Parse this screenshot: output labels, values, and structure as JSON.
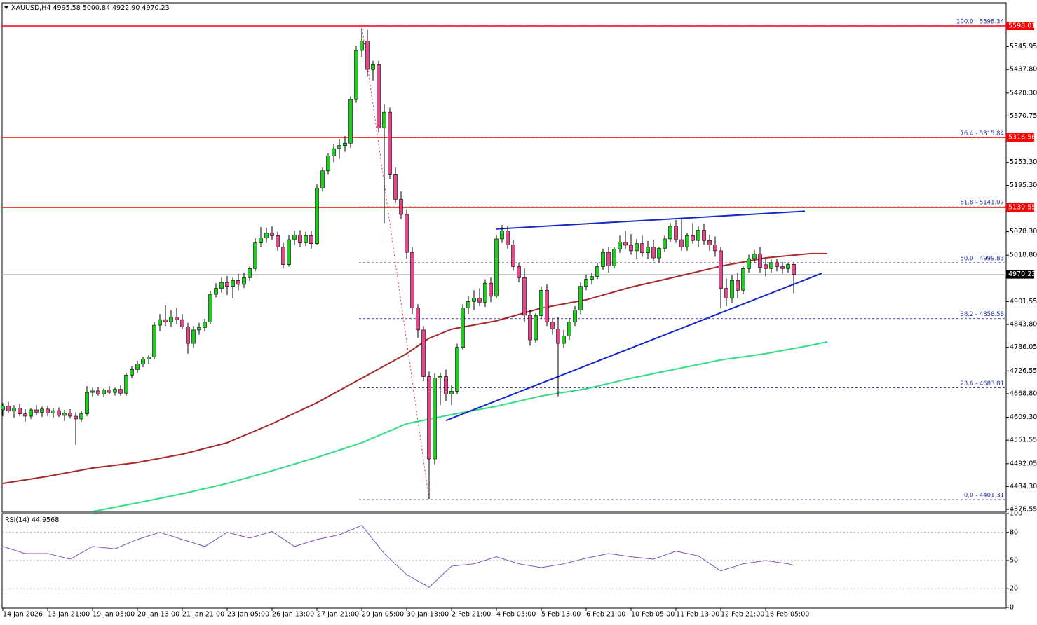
{
  "chart_data": {
    "type": "candlestick",
    "symbol": "XAUUSD,H4",
    "ohlc_labels": [
      "4995.58",
      "5000.84",
      "4922.90",
      "4970.23"
    ],
    "up_color": "#22cc22",
    "down_color": "#e6468a",
    "categories": [
      "14 Jan 2026",
      null,
      null,
      null,
      null,
      null,
      null,
      null,
      "15 Jan 21:00",
      null,
      null,
      null,
      null,
      null,
      null,
      null,
      "19 Jan 05:00",
      null,
      null,
      null,
      null,
      null,
      null,
      null,
      "20 Jan 13:00",
      null,
      null,
      null,
      null,
      null,
      null,
      null,
      "21 Jan 21:00",
      null,
      null,
      null,
      null,
      null,
      null,
      null,
      "23 Jan 05:00",
      null,
      null,
      null,
      null,
      null,
      null,
      null,
      "26 Jan 13:00",
      null,
      null,
      null,
      null,
      null,
      null,
      null,
      "27 Jan 21:00",
      null,
      null,
      null,
      null,
      null,
      null,
      null,
      "29 Jan 05:00",
      null,
      null,
      null,
      null,
      null,
      null,
      null,
      "30 Jan 13:00",
      null,
      null,
      null,
      null,
      null,
      null,
      null,
      "2 Feb 21:00",
      null,
      null,
      null,
      null,
      null,
      null,
      null,
      "4 Feb 05:00",
      null,
      null,
      null,
      null,
      null,
      null,
      null,
      "5 Feb 13:00",
      null,
      null,
      null,
      null,
      null,
      null,
      null,
      "6 Feb 21:00",
      null,
      null,
      null,
      null,
      null,
      null,
      null,
      "10 Feb 05:00",
      null,
      null,
      null,
      null,
      null,
      null,
      null,
      "11 Feb 13:00",
      null,
      null,
      null,
      null,
      null,
      null,
      null,
      "12 Feb 21:00",
      null,
      null,
      null,
      null,
      null,
      null,
      null,
      "16 Feb 05:00",
      null,
      null,
      null,
      null,
      null
    ],
    "candles": [
      [
        4628,
        4645,
        4612,
        4638
      ],
      [
        4638,
        4648,
        4620,
        4625
      ],
      [
        4625,
        4640,
        4608,
        4632
      ],
      [
        4632,
        4642,
        4612,
        4618
      ],
      [
        4618,
        4630,
        4598,
        4612
      ],
      [
        4612,
        4632,
        4605,
        4628
      ],
      [
        4628,
        4640,
        4615,
        4622
      ],
      [
        4622,
        4636,
        4610,
        4630
      ],
      [
        4630,
        4638,
        4612,
        4620
      ],
      [
        4620,
        4632,
        4608,
        4626
      ],
      [
        4626,
        4634,
        4610,
        4614
      ],
      [
        4614,
        4628,
        4600,
        4620
      ],
      [
        4620,
        4630,
        4606,
        4612
      ],
      [
        4612,
        4622,
        4540,
        4605
      ],
      [
        4605,
        4625,
        4598,
        4618
      ],
      [
        4618,
        4688,
        4612,
        4672
      ],
      [
        4672,
        4684,
        4662,
        4676
      ],
      [
        4676,
        4686,
        4664,
        4668
      ],
      [
        4668,
        4682,
        4660,
        4678
      ],
      [
        4678,
        4688,
        4668,
        4672
      ],
      [
        4672,
        4684,
        4664,
        4680
      ],
      [
        4680,
        4690,
        4664,
        4670
      ],
      [
        4670,
        4722,
        4664,
        4716
      ],
      [
        4716,
        4738,
        4708,
        4730
      ],
      [
        4730,
        4752,
        4722,
        4744
      ],
      [
        4744,
        4762,
        4736,
        4756
      ],
      [
        4756,
        4768,
        4744,
        4762
      ],
      [
        4762,
        4850,
        4756,
        4842
      ],
      [
        4842,
        4870,
        4828,
        4856
      ],
      [
        4856,
        4892,
        4840,
        4850
      ],
      [
        4850,
        4880,
        4838,
        4862
      ],
      [
        4862,
        4885,
        4845,
        4856
      ],
      [
        4856,
        4870,
        4832,
        4838
      ],
      [
        4838,
        4848,
        4770,
        4796
      ],
      [
        4796,
        4840,
        4786,
        4830
      ],
      [
        4830,
        4848,
        4818,
        4836
      ],
      [
        4836,
        4858,
        4826,
        4850
      ],
      [
        4850,
        4928,
        4846,
        4920
      ],
      [
        4920,
        4948,
        4912,
        4935
      ],
      [
        4935,
        4962,
        4924,
        4950
      ],
      [
        4950,
        4966,
        4918,
        4940
      ],
      [
        4940,
        4962,
        4910,
        4955
      ],
      [
        4955,
        4972,
        4930,
        4945
      ],
      [
        4945,
        4975,
        4936,
        4962
      ],
      [
        4962,
        4990,
        4954,
        4985
      ],
      [
        4985,
        5062,
        4978,
        5050
      ],
      [
        5050,
        5090,
        5040,
        5062
      ],
      [
        5062,
        5088,
        5050,
        5075
      ],
      [
        5075,
        5092,
        5058,
        5068
      ],
      [
        5068,
        5078,
        5030,
        5040
      ],
      [
        5040,
        5050,
        4985,
        4995
      ],
      [
        4995,
        5070,
        4990,
        5058
      ],
      [
        5058,
        5080,
        5045,
        5070
      ],
      [
        5070,
        5082,
        5040,
        5050
      ],
      [
        5050,
        5078,
        5042,
        5068
      ],
      [
        5068,
        5080,
        5035,
        5048
      ],
      [
        5048,
        5198,
        5044,
        5188
      ],
      [
        5188,
        5240,
        5180,
        5232
      ],
      [
        5232,
        5276,
        5222,
        5270
      ],
      [
        5270,
        5300,
        5254,
        5288
      ],
      [
        5288,
        5312,
        5262,
        5296
      ],
      [
        5296,
        5320,
        5280,
        5302
      ],
      [
        5302,
        5420,
        5290,
        5412
      ],
      [
        5412,
        5548,
        5404,
        5536
      ],
      [
        5536,
        5593,
        5520,
        5560
      ],
      [
        5560,
        5588,
        5470,
        5488
      ],
      [
        5488,
        5510,
        5460,
        5500
      ],
      [
        5500,
        5510,
        5328,
        5340
      ],
      [
        5340,
        5400,
        5100,
        5380
      ],
      [
        5380,
        5392,
        5210,
        5222
      ],
      [
        5222,
        5240,
        5150,
        5160
      ],
      [
        5160,
        5180,
        5110,
        5122
      ],
      [
        5122,
        5135,
        5010,
        5026
      ],
      [
        5026,
        5040,
        4870,
        4885
      ],
      [
        4885,
        4895,
        4810,
        4830
      ],
      [
        4830,
        4840,
        4700,
        4712
      ],
      [
        4712,
        4725,
        4403,
        4504
      ],
      [
        4504,
        4720,
        4490,
        4708
      ],
      [
        4708,
        4722,
        4640,
        4712
      ],
      [
        4712,
        4730,
        4650,
        4668
      ],
      [
        4668,
        4690,
        4640,
        4675
      ],
      [
        4675,
        4795,
        4668,
        4786
      ],
      [
        4786,
        4895,
        4780,
        4885
      ],
      [
        4885,
        4915,
        4870,
        4902
      ],
      [
        4902,
        4930,
        4880,
        4910
      ],
      [
        4910,
        4935,
        4890,
        4900
      ],
      [
        4900,
        4958,
        4888,
        4948
      ],
      [
        4948,
        4962,
        4900,
        4915
      ],
      [
        4915,
        5070,
        4910,
        5060
      ],
      [
        5060,
        5095,
        5050,
        5080
      ],
      [
        5080,
        5092,
        5035,
        5045
      ],
      [
        5045,
        5058,
        4980,
        4990
      ],
      [
        4990,
        5000,
        4950,
        4962
      ],
      [
        4962,
        4985,
        4850,
        4867
      ],
      [
        4867,
        4880,
        4790,
        4805
      ],
      [
        4805,
        4872,
        4798,
        4866
      ],
      [
        4866,
        4940,
        4858,
        4930
      ],
      [
        4930,
        4945,
        4840,
        4850
      ],
      [
        4850,
        4860,
        4818,
        4832
      ],
      [
        4832,
        4862,
        4662,
        4796
      ],
      [
        4796,
        4830,
        4785,
        4815
      ],
      [
        4815,
        4860,
        4805,
        4850
      ],
      [
        4850,
        4890,
        4840,
        4880
      ],
      [
        4880,
        4950,
        4870,
        4940
      ],
      [
        4940,
        4970,
        4930,
        4958
      ],
      [
        4958,
        4975,
        4945,
        4965
      ],
      [
        4965,
        4998,
        4958,
        4990
      ],
      [
        4990,
        5035,
        4982,
        5026
      ],
      [
        5026,
        5040,
        4975,
        4992
      ],
      [
        4992,
        5040,
        4985,
        5034
      ],
      [
        5034,
        5068,
        5025,
        5052
      ],
      [
        5052,
        5080,
        5035,
        5044
      ],
      [
        5044,
        5072,
        5020,
        5030
      ],
      [
        5030,
        5060,
        5010,
        5048
      ],
      [
        5048,
        5068,
        5015,
        5025
      ],
      [
        5025,
        5055,
        5010,
        5040
      ],
      [
        5040,
        5058,
        5005,
        5012
      ],
      [
        5012,
        5040,
        5000,
        5036
      ],
      [
        5036,
        5068,
        5028,
        5060
      ],
      [
        5060,
        5100,
        5052,
        5092
      ],
      [
        5092,
        5108,
        5050,
        5058
      ],
      [
        5058,
        5110,
        5030,
        5040
      ],
      [
        5040,
        5075,
        5030,
        5068
      ],
      [
        5068,
        5100,
        5048,
        5056
      ],
      [
        5056,
        5092,
        5040,
        5082
      ],
      [
        5082,
        5098,
        5045,
        5056
      ],
      [
        5056,
        5070,
        5030,
        5045
      ],
      [
        5045,
        5066,
        5015,
        5030
      ],
      [
        5030,
        5040,
        4884,
        4935
      ],
      [
        4935,
        4960,
        4890,
        4910
      ],
      [
        4910,
        4968,
        4898,
        4955
      ],
      [
        4955,
        4975,
        4910,
        4930
      ],
      [
        4930,
        4990,
        4920,
        4985
      ],
      [
        4985,
        5020,
        4975,
        5010
      ],
      [
        5010,
        5032,
        5000,
        5022
      ],
      [
        5022,
        5040,
        4975,
        4988
      ],
      [
        4995,
        5010,
        4965,
        4985
      ],
      [
        4985,
        5008,
        4975,
        5000
      ],
      [
        5000,
        5010,
        4978,
        4990
      ],
      [
        4990,
        5002,
        4972,
        4985
      ],
      [
        4985,
        5000,
        4975,
        4995
      ],
      [
        4995.58,
        5000.84,
        4922.9,
        4970.23
      ]
    ],
    "ylim": [
      4369.5,
      5656.4
    ],
    "yticks": [
      5545.95,
      {
        "value": 5487.8,
        "label": "5487.80"
      },
      {
        "value": 5428.3,
        "label": "5428.30"
      },
      5370.75,
      {
        "value": 5253.3,
        "label": "5253.30"
      },
      {
        "value": 5195.3,
        "label": "5195.30"
      },
      {
        "value": 5078.3,
        "label": "5078.30"
      },
      {
        "value": 5018.8,
        "label": "5018.80"
      },
      4901.55,
      {
        "value": 4843.8,
        "label": "4843.80"
      },
      4786.05,
      4726.55,
      {
        "value": 4668.8,
        "label": "4668.80"
      },
      {
        "value": 4609.3,
        "label": "4609.30"
      },
      4551.55,
      4492.05,
      {
        "value": 4434.3,
        "label": "4434.30"
      },
      4376.55
    ],
    "hlines": {
      "color": "#ff0000",
      "values": [
        5598.01,
        5316.56,
        5139.55
      ]
    },
    "fib": {
      "color": "#1f2fa0",
      "line_color": "#3030a0",
      "diag_color": "#e03030",
      "from": 64,
      "to": 76,
      "levels": [
        {
          "label": "100.0 - 5598.34",
          "value": 5598.34
        },
        {
          "label": "76.4 - 5315.84",
          "value": 5315.84
        },
        {
          "label": "61.8 - 5141.07",
          "value": 5141.07
        },
        {
          "label": "50.0 - 4999.83",
          "value": 4999.83
        },
        {
          "label": "38.2 - 4858.58",
          "value": 4858.58
        },
        {
          "label": "23.6 - 4683.81",
          "value": 4683.81
        },
        {
          "label": "0.0 - 4401.31",
          "value": 4401.31
        }
      ]
    },
    "trendlines": {
      "color": "#1428c8",
      "lines": [
        {
          "x": [
            79,
            146
          ],
          "y": [
            4601,
            4973
          ]
        },
        {
          "x": [
            88,
            143
          ],
          "y": [
            5085,
            5130
          ]
        }
      ]
    },
    "series": [
      {
        "color": "#a52a2a",
        "x": [
          0,
          8,
          16,
          24,
          32,
          40,
          48,
          56,
          64,
          72,
          76,
          80,
          88,
          96,
          104,
          112,
          120,
          128,
          136,
          144,
          147
        ],
        "values": [
          4442,
          4460,
          4481,
          4495,
          4516,
          4545,
          4593,
          4646,
          4708,
          4770,
          4809,
          4832,
          4853,
          4885,
          4906,
          4938,
          4964,
          4991,
          5012,
          5023,
          5023
        ]
      },
      {
        "color": "#33dd88",
        "x": [
          16,
          24,
          32,
          40,
          48,
          56,
          64,
          72,
          80,
          88,
          96,
          104,
          112,
          120,
          128,
          136,
          144,
          147
        ],
        "values": [
          4371,
          4393,
          4416,
          4442,
          4474,
          4508,
          4545,
          4593,
          4616,
          4637,
          4663,
          4681,
          4708,
          4731,
          4754,
          4770,
          4791,
          4800
        ]
      }
    ],
    "rsi": {
      "name": "RSI(14)",
      "color": "#7a52b8",
      "ylim": [
        0,
        100
      ],
      "yticks": [
        0,
        20,
        50,
        80,
        100
      ],
      "x": [
        0,
        4,
        8,
        12,
        16,
        20,
        24,
        28,
        32,
        36,
        40,
        44,
        48,
        52,
        56,
        60,
        64,
        68,
        72,
        76,
        80,
        84,
        88,
        92,
        96,
        100,
        104,
        108,
        112,
        116,
        120,
        124,
        128,
        132,
        136,
        140,
        141
      ],
      "values": [
        65,
        57.5,
        57.5,
        51.5,
        65,
        62.5,
        72.5,
        80,
        72.5,
        65,
        80,
        74,
        81,
        65,
        72.5,
        77.5,
        87.5,
        57.5,
        35,
        21.5,
        44,
        46.5,
        54,
        46.5,
        42.5,
        46.5,
        52.5,
        57.5,
        54,
        51.5,
        60,
        55,
        39,
        46.5,
        50,
        46.5,
        44.9568
      ]
    }
  }
}
